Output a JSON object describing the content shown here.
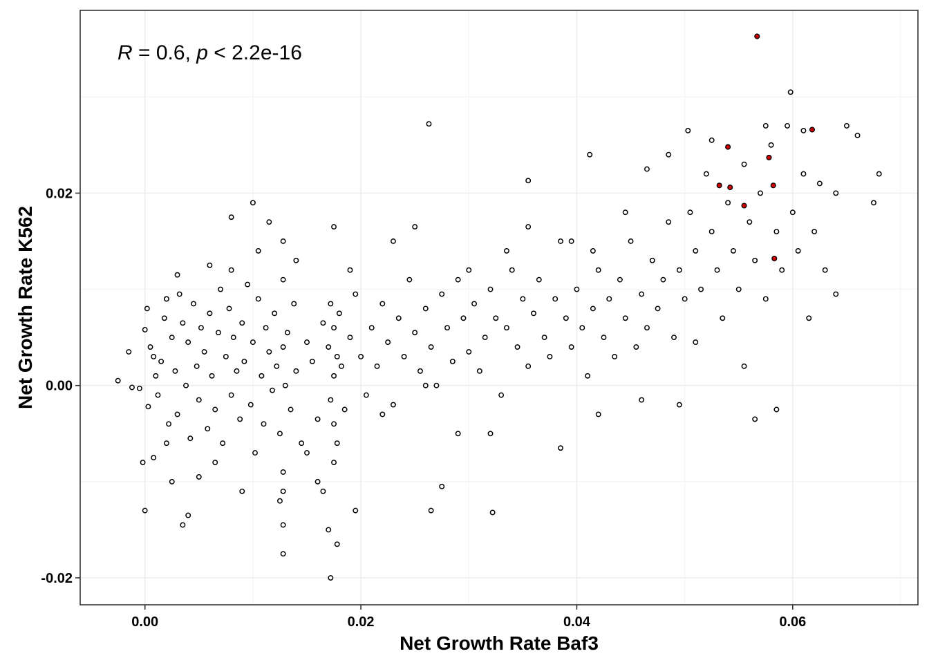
{
  "chart_data": {
    "type": "scatter",
    "title": "",
    "xlabel": "Net Growth Rate Baf3",
    "ylabel": "Net Growth Rate K562",
    "xlim": [
      -0.006,
      0.0716
    ],
    "ylim": [
      -0.0228,
      0.039
    ],
    "x_ticks": [
      0.0,
      0.02,
      0.04,
      0.06
    ],
    "x_tick_labels": [
      "0.00",
      "0.02",
      "0.04",
      "0.06"
    ],
    "y_ticks": [
      -0.02,
      0.0,
      0.02
    ],
    "y_tick_labels": [
      "-0.02",
      "0.00",
      "0.02"
    ],
    "grid": true,
    "annotation": {
      "r_symbol": "R",
      "r_text": " = 0.6, ",
      "p_symbol": "p",
      "p_text": " < 2.2e-16"
    },
    "point_style": {
      "fill": "#ffffff",
      "stroke": "#000000"
    },
    "highlight_style": {
      "fill": "#cc0000",
      "stroke": "#000000"
    },
    "series": [
      {
        "name": "",
        "points": [
          [
            -0.0025,
            0.0005
          ],
          [
            -0.0015,
            0.0035
          ],
          [
            -0.0012,
            -0.0002
          ],
          [
            -0.0005,
            -0.0003
          ],
          [
            0.0,
            0.0058
          ],
          [
            0.0002,
            0.008
          ],
          [
            0.0003,
            -0.0022
          ],
          [
            0.0005,
            0.004
          ],
          [
            0.0008,
            0.003
          ],
          [
            0.001,
            0.001
          ],
          [
            0.0012,
            -0.001
          ],
          [
            0.0015,
            0.0025
          ],
          [
            0.0018,
            0.007
          ],
          [
            0.002,
            0.009
          ],
          [
            0.0022,
            -0.004
          ],
          [
            0.0025,
            0.005
          ],
          [
            0.0028,
            0.0015
          ],
          [
            0.003,
            -0.003
          ],
          [
            0.0032,
            0.0095
          ],
          [
            0.0035,
            0.0065
          ],
          [
            0.0038,
            0.0
          ],
          [
            0.004,
            0.0045
          ],
          [
            0.0042,
            -0.0055
          ],
          [
            0.0045,
            0.0085
          ],
          [
            0.0048,
            0.002
          ],
          [
            0.005,
            -0.0015
          ],
          [
            0.0052,
            0.006
          ],
          [
            0.0055,
            0.0035
          ],
          [
            0.0058,
            -0.0045
          ],
          [
            0.006,
            0.0075
          ],
          [
            0.0062,
            0.001
          ],
          [
            0.0065,
            -0.0025
          ],
          [
            0.0068,
            0.0055
          ],
          [
            0.007,
            0.01
          ],
          [
            0.0072,
            -0.006
          ],
          [
            0.0075,
            0.003
          ],
          [
            0.0078,
            0.008
          ],
          [
            0.008,
            -0.001
          ],
          [
            0.0082,
            0.005
          ],
          [
            0.0085,
            0.0015
          ],
          [
            0.0088,
            -0.0035
          ],
          [
            0.009,
            0.0065
          ],
          [
            0.0092,
            0.0025
          ],
          [
            0.0095,
            0.0105
          ],
          [
            0.0098,
            -0.002
          ],
          [
            0.01,
            0.0045
          ],
          [
            0.0102,
            -0.007
          ],
          [
            0.0105,
            0.009
          ],
          [
            0.0108,
            0.001
          ],
          [
            0.011,
            -0.004
          ],
          [
            0.0112,
            0.006
          ],
          [
            0.0115,
            0.0035
          ],
          [
            0.0118,
            -0.0005
          ],
          [
            0.012,
            0.0075
          ],
          [
            0.0122,
            0.002
          ],
          [
            0.0125,
            -0.005
          ],
          [
            0.0128,
            0.011
          ],
          [
            0.0128,
            0.004
          ],
          [
            0.0128,
            -0.009
          ],
          [
            0.0128,
            -0.011
          ],
          [
            0.013,
            0.0
          ],
          [
            0.0132,
            0.0055
          ],
          [
            0.0135,
            -0.0025
          ],
          [
            0.0138,
            0.0085
          ],
          [
            0.014,
            0.0015
          ],
          [
            0.0145,
            -0.006
          ],
          [
            0.015,
            0.0045
          ],
          [
            0.0155,
            0.0025
          ],
          [
            0.016,
            -0.0035
          ],
          [
            0.0165,
            0.0065
          ],
          [
            0.017,
            0.004
          ],
          [
            0.0172,
            -0.0015
          ],
          [
            0.0172,
            0.0085
          ],
          [
            0.0175,
            0.001
          ],
          [
            0.0175,
            -0.004
          ],
          [
            0.0175,
            0.006
          ],
          [
            0.0175,
            -0.008
          ],
          [
            0.0178,
            0.003
          ],
          [
            0.0178,
            -0.006
          ],
          [
            0.018,
            0.0075
          ],
          [
            0.0182,
            0.002
          ],
          [
            0.0185,
            -0.0025
          ],
          [
            0.019,
            0.005
          ],
          [
            0.0195,
            0.0095
          ],
          [
            0.02,
            0.003
          ],
          [
            0.0205,
            -0.001
          ],
          [
            0.021,
            0.006
          ],
          [
            0.0215,
            0.002
          ],
          [
            0.022,
            0.0085
          ],
          [
            0.0225,
            0.0045
          ],
          [
            0.023,
            -0.002
          ],
          [
            0.0235,
            0.007
          ],
          [
            0.024,
            0.003
          ],
          [
            0.0245,
            0.011
          ],
          [
            0.025,
            0.0055
          ],
          [
            0.0255,
            0.0015
          ],
          [
            0.026,
            0.008
          ],
          [
            0.0265,
            0.004
          ],
          [
            0.027,
            0.0
          ],
          [
            0.0275,
            0.0095
          ],
          [
            0.028,
            0.006
          ],
          [
            0.0285,
            0.0025
          ],
          [
            0.029,
            0.011
          ],
          [
            0.0295,
            0.007
          ],
          [
            0.03,
            0.0035
          ],
          [
            0.0305,
            0.0085
          ],
          [
            0.031,
            0.0015
          ],
          [
            0.0315,
            0.005
          ],
          [
            0.032,
            0.01
          ],
          [
            0.0325,
            0.007
          ],
          [
            0.033,
            -0.001
          ],
          [
            0.0335,
            0.006
          ],
          [
            0.034,
            0.012
          ],
          [
            0.0345,
            0.004
          ],
          [
            0.035,
            0.009
          ],
          [
            0.0355,
            0.002
          ],
          [
            0.036,
            0.0075
          ],
          [
            0.0365,
            0.011
          ],
          [
            0.037,
            0.005
          ],
          [
            0.0375,
            0.003
          ],
          [
            0.038,
            0.009
          ],
          [
            0.0385,
            0.015
          ],
          [
            0.039,
            0.007
          ],
          [
            0.0395,
            0.004
          ],
          [
            0.04,
            0.01
          ],
          [
            0.0405,
            0.006
          ],
          [
            0.041,
            0.001
          ],
          [
            0.0415,
            0.008
          ],
          [
            0.042,
            0.012
          ],
          [
            0.0425,
            0.005
          ],
          [
            0.043,
            0.009
          ],
          [
            0.0435,
            0.003
          ],
          [
            0.044,
            0.011
          ],
          [
            0.0445,
            0.007
          ],
          [
            0.045,
            0.015
          ],
          [
            0.0455,
            0.004
          ],
          [
            0.046,
            0.0095
          ],
          [
            0.0465,
            0.006
          ],
          [
            0.047,
            0.013
          ],
          [
            0.0475,
            0.008
          ],
          [
            0.048,
            0.011
          ],
          [
            0.0485,
            0.017
          ],
          [
            0.049,
            0.005
          ],
          [
            0.0495,
            0.012
          ],
          [
            0.05,
            0.009
          ],
          [
            0.0505,
            0.018
          ],
          [
            0.051,
            0.014
          ],
          [
            0.0515,
            0.01
          ],
          [
            0.052,
            0.022
          ],
          [
            0.0525,
            0.016
          ],
          [
            0.053,
            0.012
          ],
          [
            0.0535,
            0.007
          ],
          [
            0.054,
            0.019
          ],
          [
            0.0545,
            0.014
          ],
          [
            0.055,
            0.01
          ],
          [
            0.0555,
            0.023
          ],
          [
            0.056,
            0.017
          ],
          [
            0.0565,
            0.013
          ],
          [
            0.057,
            0.02
          ],
          [
            0.0575,
            0.009
          ],
          [
            0.058,
            0.025
          ],
          [
            0.0585,
            0.016
          ],
          [
            0.059,
            0.012
          ],
          [
            0.0595,
            0.027
          ],
          [
            0.06,
            0.018
          ],
          [
            0.0605,
            0.014
          ],
          [
            0.061,
            0.022
          ],
          [
            0.0615,
            0.007
          ],
          [
            0.062,
            0.016
          ],
          [
            0.0625,
            0.021
          ],
          [
            0.063,
            0.012
          ],
          [
            0.064,
            0.02
          ],
          [
            0.065,
            0.027
          ],
          [
            0.066,
            0.026
          ],
          [
            0.0675,
            0.019
          ],
          [
            0.068,
            0.022
          ],
          [
            0.0263,
            0.0272
          ],
          [
            0.0355,
            0.0213
          ],
          [
            0.0412,
            0.024
          ],
          [
            0.0503,
            0.0265
          ],
          [
            0.0598,
            0.0305
          ],
          [
            0.064,
            0.0095
          ],
          [
            0.008,
            0.0175
          ],
          [
            0.01,
            0.019
          ],
          [
            0.0115,
            0.017
          ],
          [
            0.0128,
            0.015
          ],
          [
            0.0175,
            0.0165
          ],
          [
            0.016,
            -0.01
          ],
          [
            0.017,
            -0.015
          ],
          [
            0.0172,
            -0.02
          ],
          [
            0.0178,
            -0.0165
          ],
          [
            0.0128,
            -0.0175
          ],
          [
            0.0128,
            -0.0145
          ],
          [
            0.0035,
            -0.0145
          ],
          [
            0.0,
            -0.013
          ],
          [
            0.004,
            -0.0135
          ],
          [
            0.0025,
            -0.01
          ],
          [
            0.009,
            -0.011
          ],
          [
            0.0265,
            -0.013
          ],
          [
            0.0275,
            -0.0105
          ],
          [
            0.0322,
            -0.0132
          ],
          [
            0.0385,
            -0.0065
          ],
          [
            0.042,
            -0.003
          ],
          [
            0.0495,
            -0.002
          ],
          [
            0.0565,
            -0.0035
          ],
          [
            0.0585,
            -0.0025
          ],
          [
            0.0555,
            0.002
          ],
          [
            0.051,
            0.0045
          ],
          [
            0.046,
            -0.0015
          ],
          [
            0.032,
            -0.005
          ],
          [
            0.029,
            -0.005
          ],
          [
            0.026,
            0.0
          ],
          [
            0.022,
            -0.003
          ],
          [
            0.0195,
            -0.013
          ],
          [
            0.0165,
            -0.011
          ],
          [
            0.015,
            -0.007
          ],
          [
            0.0125,
            -0.012
          ],
          [
            0.0065,
            -0.008
          ],
          [
            0.005,
            -0.0095
          ],
          [
            0.002,
            -0.006
          ],
          [
            0.0008,
            -0.0075
          ],
          [
            -0.0002,
            -0.008
          ],
          [
            0.0105,
            0.014
          ],
          [
            0.008,
            0.012
          ],
          [
            0.006,
            0.0125
          ],
          [
            0.003,
            0.0115
          ],
          [
            0.002,
            0.009
          ],
          [
            0.014,
            0.013
          ],
          [
            0.019,
            0.012
          ],
          [
            0.023,
            0.015
          ],
          [
            0.025,
            0.0165
          ],
          [
            0.03,
            0.012
          ],
          [
            0.0335,
            0.014
          ],
          [
            0.0355,
            0.0165
          ],
          [
            0.0395,
            0.015
          ],
          [
            0.0415,
            0.014
          ],
          [
            0.0445,
            0.018
          ],
          [
            0.0465,
            0.0225
          ],
          [
            0.0485,
            0.024
          ],
          [
            0.0525,
            0.0255
          ],
          [
            0.0575,
            0.027
          ],
          [
            0.061,
            0.0265
          ]
        ],
        "highlight": [
          [
            0.0567,
            0.0363
          ],
          [
            0.0618,
            0.0266
          ],
          [
            0.054,
            0.0248
          ],
          [
            0.0578,
            0.0237
          ],
          [
            0.0532,
            0.0208
          ],
          [
            0.0542,
            0.0206
          ],
          [
            0.0582,
            0.0208
          ],
          [
            0.0555,
            0.0187
          ],
          [
            0.0583,
            0.0132
          ]
        ]
      }
    ]
  }
}
